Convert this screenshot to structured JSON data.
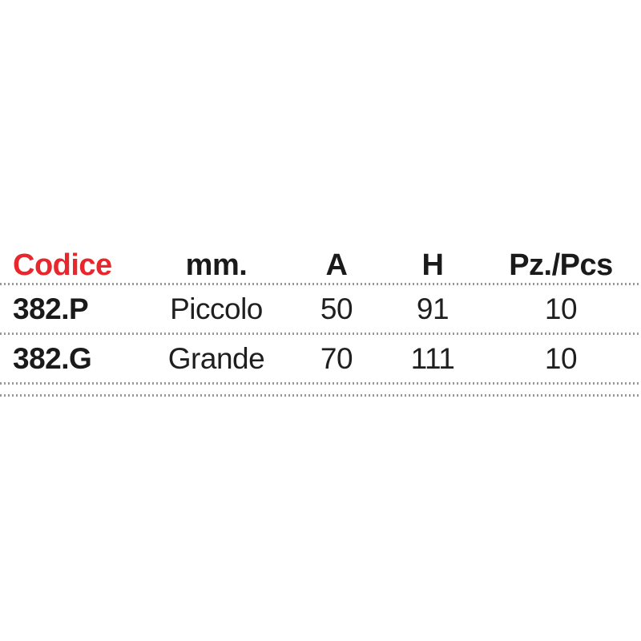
{
  "table": {
    "columns": [
      {
        "label": "Codice"
      },
      {
        "label": "mm."
      },
      {
        "label": "A"
      },
      {
        "label": "H"
      },
      {
        "label": "Pz./Pcs"
      }
    ],
    "rows": [
      {
        "codice": "382.P",
        "mm": "Piccolo",
        "a": "50",
        "h": "91",
        "pz": "10"
      },
      {
        "codice": "382.G",
        "mm": "Grande",
        "a": "70",
        "h": "111",
        "pz": "10"
      }
    ],
    "colors": {
      "header_accent": "#e8262b",
      "text": "#1f1f1f",
      "divider_dots": "#999999",
      "background": "#ffffff"
    }
  }
}
